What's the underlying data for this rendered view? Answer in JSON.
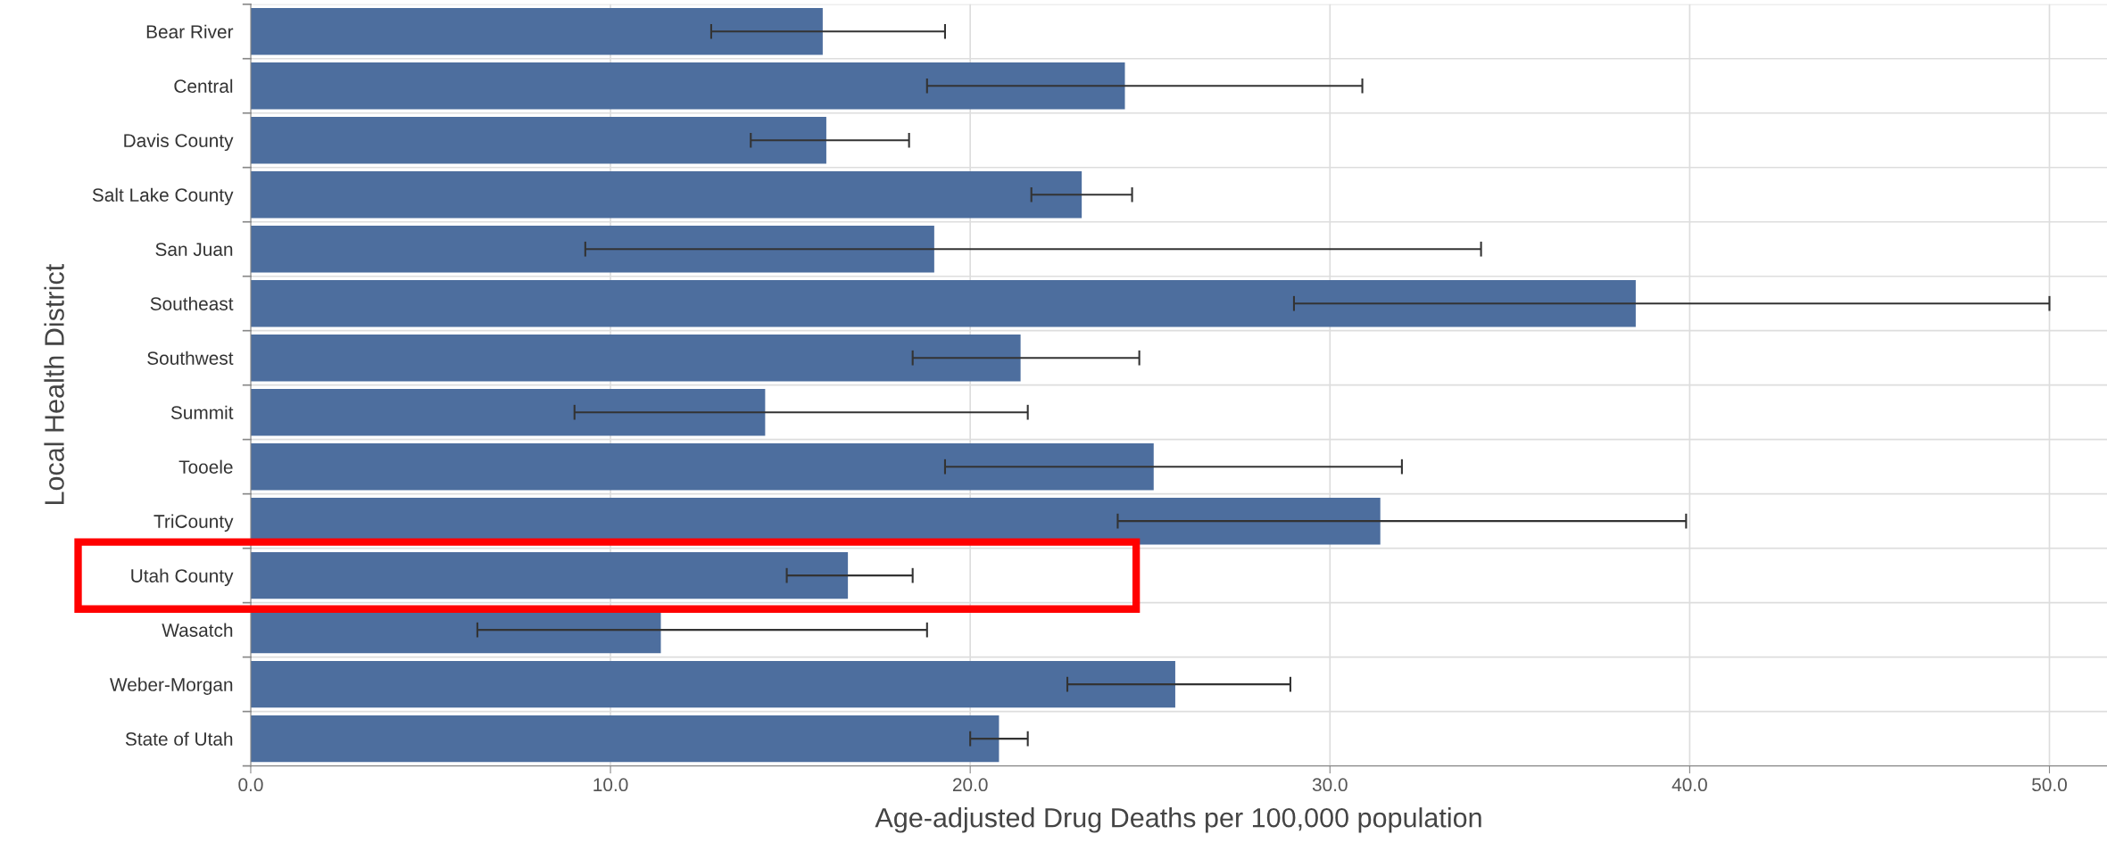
{
  "chart_data": {
    "type": "bar",
    "orientation": "horizontal",
    "xlabel": "Age-adjusted Drug Deaths per 100,000 population",
    "ylabel": "Local Health District",
    "categories": [
      "Bear River",
      "Central",
      "Davis County",
      "Salt Lake County",
      "San Juan",
      "Southeast",
      "Southwest",
      "Summit",
      "Tooele",
      "TriCounty",
      "Utah County",
      "Wasatch",
      "Weber-Morgan",
      "State of Utah"
    ],
    "values": [
      15.9,
      24.3,
      16.0,
      23.1,
      19.0,
      38.5,
      21.4,
      14.3,
      25.1,
      31.4,
      16.6,
      11.4,
      25.7,
      20.8
    ],
    "errors": [
      [
        12.8,
        19.3
      ],
      [
        18.8,
        30.9
      ],
      [
        13.9,
        18.3
      ],
      [
        21.7,
        24.5
      ],
      [
        9.3,
        34.2
      ],
      [
        29.0,
        50.0
      ],
      [
        18.4,
        24.7
      ],
      [
        9.0,
        21.6
      ],
      [
        19.3,
        32.0
      ],
      [
        24.1,
        39.9
      ],
      [
        14.9,
        18.4
      ],
      [
        6.3,
        18.8
      ],
      [
        22.7,
        28.9
      ],
      [
        20.0,
        21.6
      ]
    ],
    "color": "#4d6e9e",
    "xlim": [
      0,
      51.6
    ],
    "xticks": [
      {
        "value": 0,
        "label": "0.0"
      },
      {
        "value": 10,
        "label": "10.0"
      },
      {
        "value": 20,
        "label": "20.0"
      },
      {
        "value": 30,
        "label": "30.0"
      },
      {
        "value": 40,
        "label": "40.0"
      },
      {
        "value": 50,
        "label": "50.0"
      }
    ],
    "grid": true
  }
}
